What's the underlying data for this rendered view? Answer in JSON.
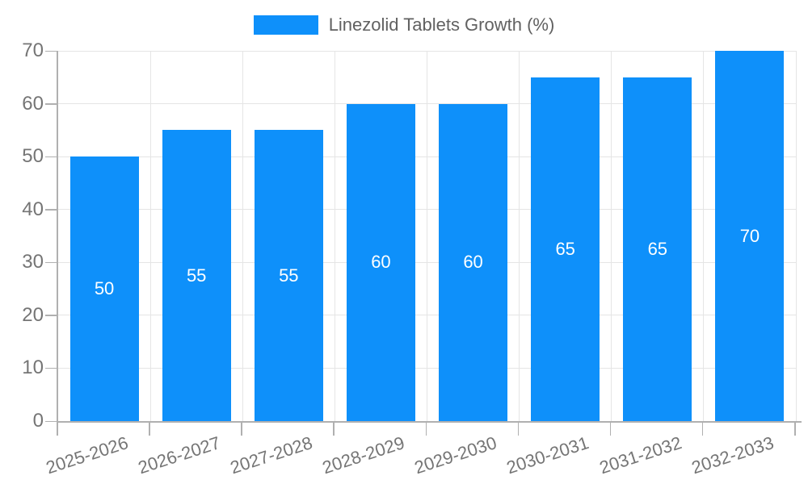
{
  "legend": {
    "series_label": "Linezolid Tablets Growth (%)"
  },
  "colors": {
    "bar": "#0e90fa",
    "grid": "#e5e5e5",
    "axis": "#b0b0b0",
    "tick_label": "#757575",
    "legend_text": "#616161",
    "bar_label": "#ffffff",
    "background": "#ffffff"
  },
  "chart_data": {
    "type": "bar",
    "title": "Linezolid Tablets Growth (%)",
    "categories": [
      "2025-2026",
      "2026-2027",
      "2027-2028",
      "2028-2029",
      "2029-2030",
      "2030-2031",
      "2031-2032",
      "2032-2033"
    ],
    "values": [
      50,
      55,
      55,
      60,
      60,
      65,
      65,
      70
    ],
    "bar_value_labels_visible": true,
    "bar_value_label_position": "inside-center",
    "xlabel": "",
    "ylabel": "",
    "ylim": [
      0,
      70
    ],
    "yticks": [
      0,
      10,
      20,
      30,
      40,
      50,
      60,
      70
    ],
    "grid": true,
    "legend_position": "top-center",
    "x_tick_rotation_deg": -18
  }
}
